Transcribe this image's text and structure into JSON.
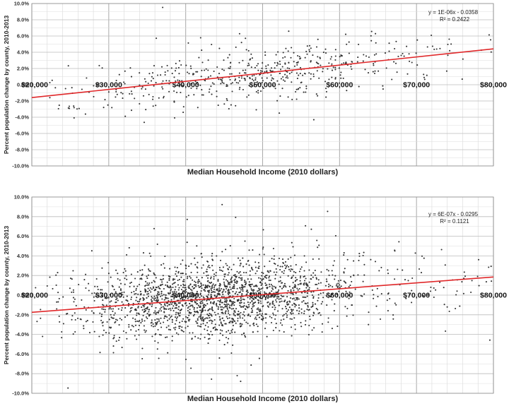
{
  "chart_data": [
    {
      "type": "scatter",
      "title": "",
      "xlabel": "Median Household Income (2010 dollars)",
      "ylabel": "Percent population change by county, 2010-2013",
      "xlim": [
        20000,
        80000
      ],
      "ylim": [
        -10,
        10
      ],
      "x_ticks": [
        "$20,000",
        "$30,000",
        "$40,000",
        "$50,000",
        "$60,000",
        "$70,000",
        "$80,000"
      ],
      "y_ticks": [
        "10.0%",
        "8.0%",
        "6.0%",
        "4.0%",
        "2.0%",
        "0.0%",
        "-2.0%",
        "-4.0%",
        "-6.0%",
        "-8.0%",
        "-10.0%"
      ],
      "grid": true,
      "point_color": "#333333",
      "trendline": {
        "slope_per_dollar": 0.0001,
        "intercept": -3.58,
        "color": "#e0282a"
      },
      "equation": "y = 1E-06x - 0.0358",
      "r2": "R² = 0.2422",
      "generator": {
        "count": 560,
        "seed": 11,
        "x_mean": 49000,
        "x_sd": 10500,
        "y_sd": 1.6
      }
    },
    {
      "type": "scatter",
      "title": "",
      "xlabel": "Median Household Income (2010 dollars)",
      "ylabel": "Percent population change by county, 2010-2013",
      "xlim": [
        20000,
        80000
      ],
      "ylim": [
        -10,
        10
      ],
      "x_ticks": [
        "$20,000",
        "$30,000",
        "$40,000",
        "$50,000",
        "$60,000",
        "$70,000",
        "$80,000"
      ],
      "y_ticks": [
        "10.0%",
        "8.0%",
        "6.0%",
        "4.0%",
        "2.0%",
        "0.0%",
        "-2.0%",
        "-4.0%",
        "-6.0%",
        "-8.0%",
        "-10.0%"
      ],
      "grid": true,
      "point_color": "#333333",
      "trendline": {
        "slope_per_dollar": 6e-05,
        "intercept": -2.95,
        "color": "#e0282a"
      },
      "equation": "y = 6E-07x - 0.0295",
      "r2": "R² = 0.1121",
      "generator": {
        "count": 2100,
        "seed": 7,
        "x_mean": 43500,
        "x_sd": 8500,
        "y_sd": 1.9
      }
    }
  ]
}
